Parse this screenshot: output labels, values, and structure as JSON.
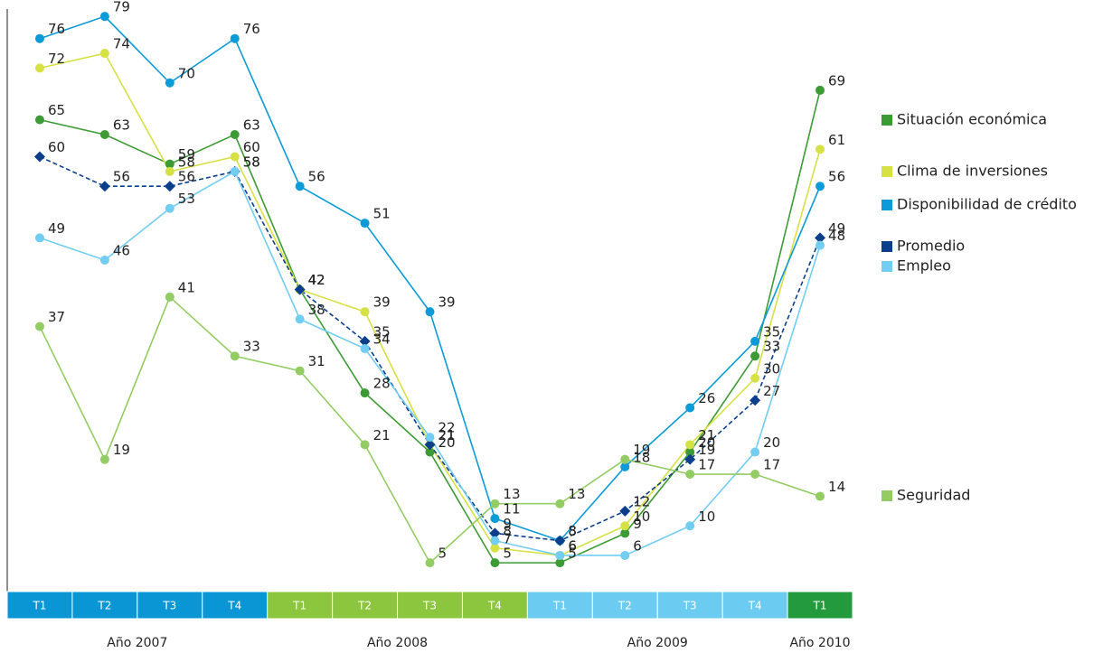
{
  "chart_data": {
    "type": "line",
    "groups": [
      {
        "label": "Año 2007",
        "color": "#0a96d4",
        "categories": [
          "T1",
          "T2",
          "T3",
          "T4"
        ]
      },
      {
        "label": "Año 2008",
        "color": "#8cc63e",
        "categories": [
          "T1",
          "T2",
          "T3",
          "T4"
        ]
      },
      {
        "label": "Año 2009",
        "color": "#6ccbf1",
        "categories": [
          "T1",
          "T2",
          "T3",
          "T4"
        ]
      },
      {
        "label": "Año 2010",
        "color": "#239a3d",
        "categories": [
          "T1"
        ]
      }
    ],
    "ylim": [
      0,
      80
    ],
    "series": [
      {
        "name": "Situación económica",
        "color": "#3d9b35",
        "values": [
          65,
          63,
          59,
          63,
          42,
          28,
          20,
          5,
          5,
          9,
          20,
          33,
          69
        ]
      },
      {
        "name": "Clima de inversiones",
        "color": "#d6e143",
        "values": [
          72,
          74,
          58,
          60,
          42,
          39,
          21,
          7,
          6,
          10,
          21,
          30,
          61
        ]
      },
      {
        "name": "Disponibilidad de crédito",
        "color": "#0a9bd8",
        "values": [
          76,
          79,
          70,
          76,
          56,
          51,
          39,
          11,
          8,
          18,
          26,
          35,
          56
        ]
      },
      {
        "name": "Promedio",
        "color": "#0b3f8c",
        "dashed": true,
        "marker": "diamond",
        "values": [
          60,
          56,
          56,
          58,
          42,
          35,
          21,
          9,
          8,
          12,
          19,
          27,
          49
        ]
      },
      {
        "name": "Empleo",
        "color": "#72cdf2",
        "values": [
          49,
          46,
          53,
          58,
          38,
          34,
          22,
          8,
          6,
          6,
          10,
          20,
          48
        ]
      },
      {
        "name": "Seguridad",
        "color": "#93cc62",
        "values": [
          37,
          19,
          41,
          33,
          31,
          21,
          5,
          13,
          13,
          19,
          17,
          17,
          14
        ]
      }
    ]
  }
}
